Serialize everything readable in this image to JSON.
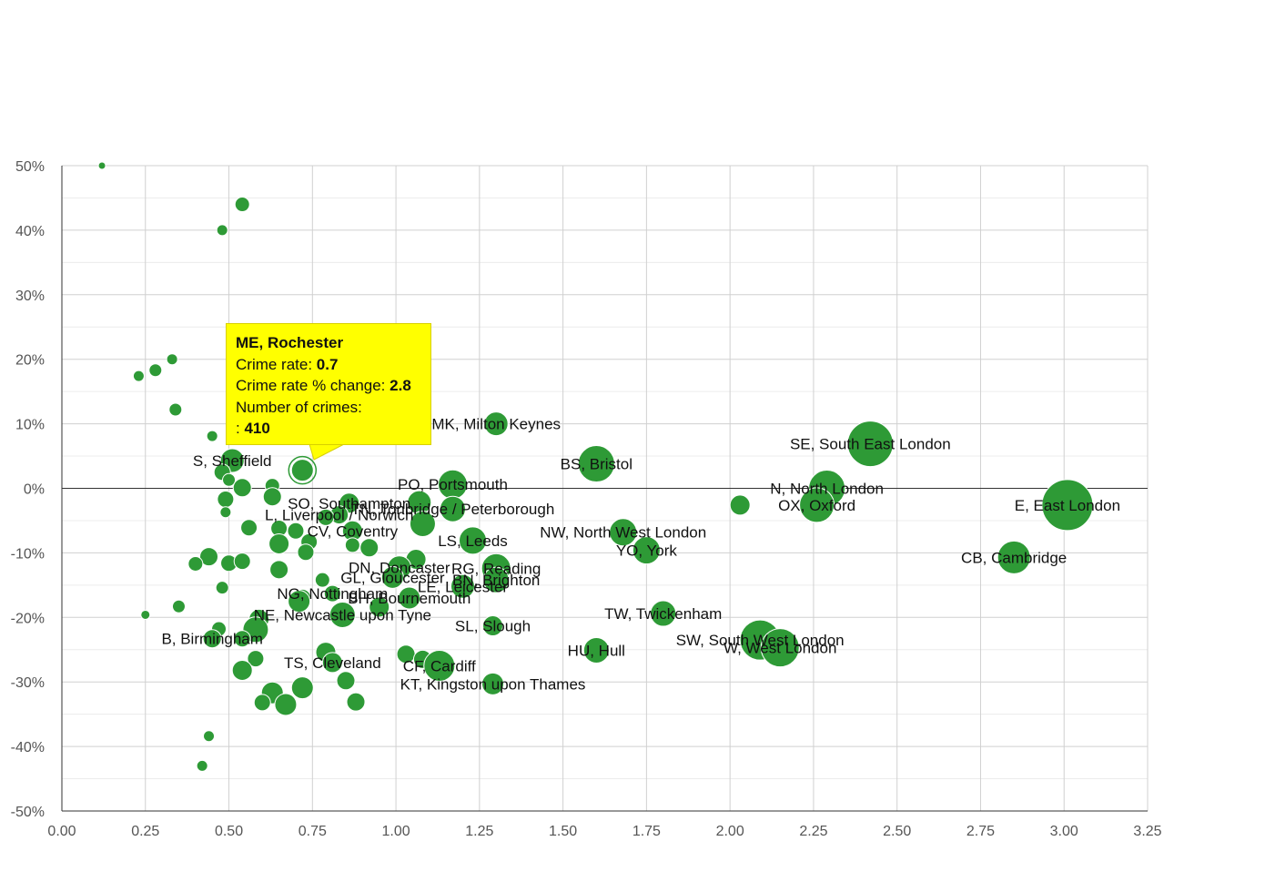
{
  "chart_data": {
    "type": "scatter",
    "subtype": "bubble",
    "x_ticks": [
      "0.00",
      "0.25",
      "0.50",
      "0.75",
      "1.00",
      "1.25",
      "1.50",
      "1.75",
      "2.00",
      "2.25",
      "2.50",
      "2.75",
      "3.00",
      "3.25"
    ],
    "y_ticks": [
      "50%",
      "40%",
      "30%",
      "20%",
      "10%",
      "0%",
      "-10%",
      "-20%",
      "-30%",
      "-40%",
      "-50%"
    ],
    "xlim": [
      0,
      3.25
    ],
    "ylim": [
      -50,
      50
    ],
    "grid": true,
    "colors": {
      "bubble": "#2e9a36",
      "tooltip_bg": "#ffff00"
    },
    "points": [
      {
        "x": 0.12,
        "y": 50,
        "r": 4
      },
      {
        "x": 0.54,
        "y": 44,
        "r": 8
      },
      {
        "x": 0.48,
        "y": 40,
        "r": 6
      },
      {
        "x": 0.33,
        "y": 20,
        "r": 6
      },
      {
        "x": 0.28,
        "y": 18.3,
        "r": 7
      },
      {
        "x": 0.23,
        "y": 17.4,
        "r": 6
      },
      {
        "x": 0.34,
        "y": 12.2,
        "r": 7
      },
      {
        "x": 0.45,
        "y": 8.1,
        "r": 6
      },
      {
        "x": 1.3,
        "y": 10,
        "r": 13,
        "label": "MK, Milton Keynes"
      },
      {
        "x": 0.51,
        "y": 4.3,
        "r": 13,
        "label": "S, Sheffield"
      },
      {
        "x": 0.72,
        "y": 2.8,
        "r": 12
      },
      {
        "x": 0.48,
        "y": 2.5,
        "r": 9
      },
      {
        "x": 0.5,
        "y": 1.3,
        "r": 7
      },
      {
        "x": 0.54,
        "y": 0.1,
        "r": 10
      },
      {
        "x": 0.63,
        "y": 0.4,
        "r": 8
      },
      {
        "x": 0.63,
        "y": -1.3,
        "r": 10
      },
      {
        "x": 0.49,
        "y": -1.7,
        "r": 9
      },
      {
        "x": 0.49,
        "y": -3.7,
        "r": 6
      },
      {
        "x": 1.6,
        "y": 3.8,
        "r": 20,
        "label": "BS, Bristol"
      },
      {
        "x": 1.17,
        "y": 0.6,
        "r": 16,
        "label": "PO, Portsmouth"
      },
      {
        "x": 2.42,
        "y": 6.9,
        "r": 25,
        "label": "SE, South East London"
      },
      {
        "x": 2.29,
        "y": 0,
        "r": 20,
        "label": "N, North London"
      },
      {
        "x": 2.26,
        "y": -2.6,
        "r": 19,
        "label": "OX, Oxford"
      },
      {
        "x": 2.03,
        "y": -2.6,
        "r": 11
      },
      {
        "x": 3.01,
        "y": -2.6,
        "r": 28,
        "label": "E, East London"
      },
      {
        "x": 0.86,
        "y": -2.3,
        "r": 11,
        "label": "SO, Southampton"
      },
      {
        "x": 1.07,
        "y": -2.2,
        "r": 13
      },
      {
        "x": 1.17,
        "y": -3.2,
        "r": 14,
        "label": "TN, Tonbridge / Peterborough"
      },
      {
        "x": 0.83,
        "y": -4.1,
        "r": 10,
        "label": "L, Liverpool / Norwich"
      },
      {
        "x": 0.79,
        "y": -4.5,
        "r": 9
      },
      {
        "x": 0.56,
        "y": -6.1,
        "r": 9
      },
      {
        "x": 0.65,
        "y": -6.2,
        "r": 9
      },
      {
        "x": 0.7,
        "y": -6.6,
        "r": 9
      },
      {
        "x": 0.87,
        "y": -6.6,
        "r": 11,
        "label": "CV, Coventry"
      },
      {
        "x": 1.08,
        "y": -5.5,
        "r": 14
      },
      {
        "x": 1.68,
        "y": -6.8,
        "r": 15,
        "label": "NW, North West London"
      },
      {
        "x": 1.23,
        "y": -8.1,
        "r": 15,
        "label": "LS, Leeds"
      },
      {
        "x": 0.65,
        "y": -8.6,
        "r": 11
      },
      {
        "x": 0.74,
        "y": -8.3,
        "r": 9
      },
      {
        "x": 0.87,
        "y": -8.8,
        "r": 8
      },
      {
        "x": 0.92,
        "y": -9.2,
        "r": 10
      },
      {
        "x": 0.73,
        "y": -9.9,
        "r": 9
      },
      {
        "x": 1.75,
        "y": -9.6,
        "r": 15,
        "label": "YO, York"
      },
      {
        "x": 2.85,
        "y": -10.7,
        "r": 18,
        "label": "CB, Cambridge"
      },
      {
        "x": 0.44,
        "y": -10.6,
        "r": 10
      },
      {
        "x": 0.4,
        "y": -11.7,
        "r": 8
      },
      {
        "x": 0.5,
        "y": -11.6,
        "r": 9
      },
      {
        "x": 0.54,
        "y": -11.3,
        "r": 9
      },
      {
        "x": 1.06,
        "y": -11,
        "r": 11
      },
      {
        "x": 1.01,
        "y": -12.3,
        "r": 13,
        "label": "DN, Doncaster"
      },
      {
        "x": 1.3,
        "y": -12.4,
        "r": 16,
        "label": "RG, Reading"
      },
      {
        "x": 0.65,
        "y": -12.6,
        "r": 10
      },
      {
        "x": 0.78,
        "y": -14.2,
        "r": 8
      },
      {
        "x": 0.99,
        "y": -13.8,
        "r": 12,
        "label": "GL, Gloucester"
      },
      {
        "x": 1.3,
        "y": -14.2,
        "r": 14,
        "label": "BN, Brighton"
      },
      {
        "x": 1.2,
        "y": -15.2,
        "r": 13,
        "label": "LE, Leicester"
      },
      {
        "x": 0.48,
        "y": -15.4,
        "r": 7
      },
      {
        "x": 0.81,
        "y": -16.3,
        "r": 9,
        "label": "NG, Nottingham"
      },
      {
        "x": 0.72,
        "y": -16.9,
        "r": 9
      },
      {
        "x": 1.04,
        "y": -17,
        "r": 12,
        "label": "BH, Bournemouth"
      },
      {
        "x": 0.71,
        "y": -17.5,
        "r": 12
      },
      {
        "x": 0.95,
        "y": -18.4,
        "r": 11
      },
      {
        "x": 0.35,
        "y": -18.3,
        "r": 7
      },
      {
        "x": 0.25,
        "y": -19.6,
        "r": 5
      },
      {
        "x": 0.84,
        "y": -19.6,
        "r": 14,
        "label": "NE, Newcastle upon Tyne"
      },
      {
        "x": 1.8,
        "y": -19.4,
        "r": 14,
        "label": "TW, Twickenham"
      },
      {
        "x": 0.59,
        "y": -20.3,
        "r": 11
      },
      {
        "x": 0.47,
        "y": -21.8,
        "r": 8
      },
      {
        "x": 0.58,
        "y": -21.9,
        "r": 14
      },
      {
        "x": 1.29,
        "y": -21.3,
        "r": 11,
        "label": "SL, Slough"
      },
      {
        "x": 0.45,
        "y": -23.3,
        "r": 10,
        "label": "B, Birmingham"
      },
      {
        "x": 0.54,
        "y": -23.3,
        "r": 9
      },
      {
        "x": 2.09,
        "y": -23.5,
        "r": 22,
        "label": "SW, South West London"
      },
      {
        "x": 2.15,
        "y": -24.7,
        "r": 21,
        "label": "W, West London"
      },
      {
        "x": 1.6,
        "y": -25.1,
        "r": 14,
        "label": "HU, Hull"
      },
      {
        "x": 0.79,
        "y": -25.4,
        "r": 11
      },
      {
        "x": 1.03,
        "y": -25.7,
        "r": 10
      },
      {
        "x": 0.58,
        "y": -26.4,
        "r": 9
      },
      {
        "x": 1.08,
        "y": -26.5,
        "r": 10
      },
      {
        "x": 0.81,
        "y": -27,
        "r": 11,
        "label": "TS, Cleveland"
      },
      {
        "x": 1.13,
        "y": -27.5,
        "r": 17,
        "label": "CF, Cardiff"
      },
      {
        "x": 0.54,
        "y": -28.2,
        "r": 11
      },
      {
        "x": 0.85,
        "y": -29.8,
        "r": 10
      },
      {
        "x": 1.29,
        "y": -30.3,
        "r": 12,
        "label": "KT, Kingston upon Thames"
      },
      {
        "x": 0.72,
        "y": -30.9,
        "r": 12
      },
      {
        "x": 0.63,
        "y": -31.7,
        "r": 12
      },
      {
        "x": 0.6,
        "y": -33.2,
        "r": 9
      },
      {
        "x": 0.67,
        "y": -33.5,
        "r": 12
      },
      {
        "x": 0.88,
        "y": -33.1,
        "r": 10
      },
      {
        "x": 0.44,
        "y": -38.4,
        "r": 6
      },
      {
        "x": 0.42,
        "y": -43,
        "r": 6
      }
    ],
    "highlight": {
      "x": 0.72,
      "y": 2.8
    },
    "tooltip": {
      "title": "ME, Rochester",
      "rate_label": "Crime rate: ",
      "rate_value": "0.7",
      "change_label": "Crime rate % change: ",
      "change_value": "2.8",
      "count_label": "Number of crimes:",
      "count_prefix": ": ",
      "count_value": "410"
    }
  }
}
